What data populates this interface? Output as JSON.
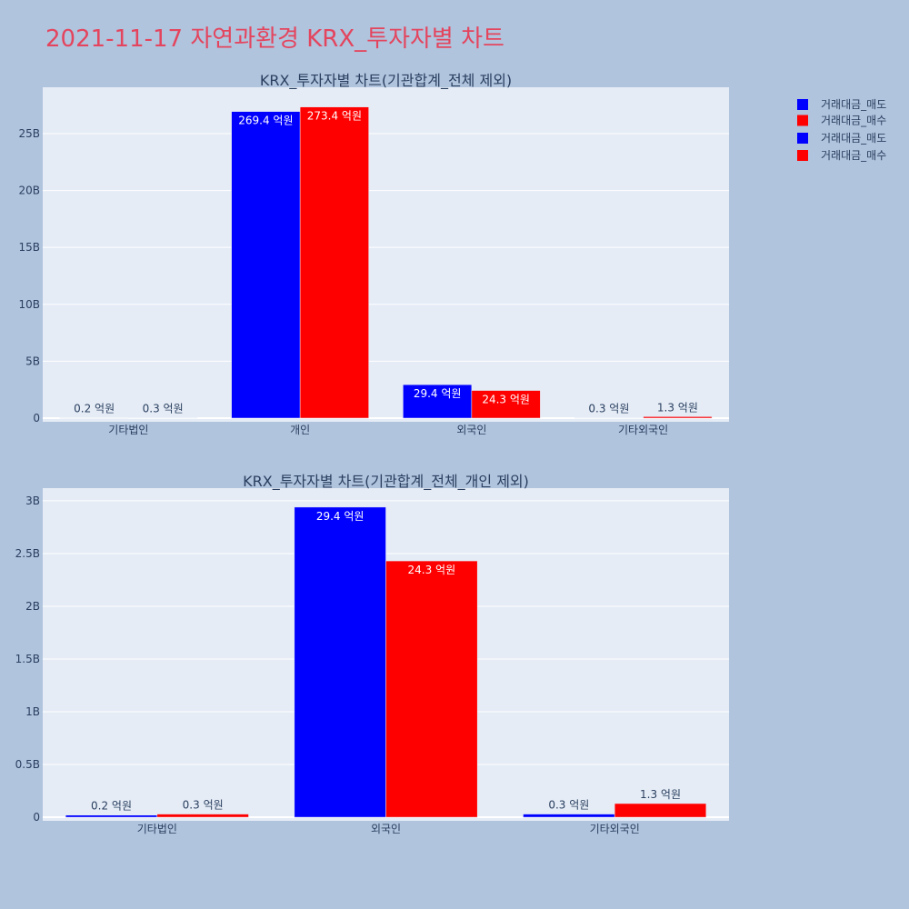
{
  "page": {
    "title": "2021-11-17 자연과환경 KRX_투자자별 차트",
    "title_color": "#e4455e",
    "background": "#b0c4de",
    "plot_background": "#e5ecf6"
  },
  "chart_data": [
    {
      "type": "bar",
      "title": "KRX_투자자별 차트(기관합계_전체 제외)",
      "xlabel": "",
      "ylabel": "",
      "categories": [
        "기타법인",
        "개인",
        "외국인",
        "기타외국인"
      ],
      "series": [
        {
          "name": "거래대금_매도",
          "color": "#0000ff",
          "values": [
            0.02,
            26.94,
            2.94,
            0.03
          ],
          "labels": [
            "0.2 억원",
            "269.4 억원",
            "29.4 억원",
            "0.3 억원"
          ]
        },
        {
          "name": "거래대금_매수",
          "color": "#ff0000",
          "values": [
            0.03,
            27.34,
            2.43,
            0.13
          ],
          "labels": [
            "0.3 억원",
            "273.4 억원",
            "24.3 억원",
            "1.3 억원"
          ]
        }
      ],
      "yticks": [
        {
          "value": 0,
          "label": "0"
        },
        {
          "value": 5,
          "label": "5B"
        },
        {
          "value": 10,
          "label": "10B"
        },
        {
          "value": 15,
          "label": "15B"
        },
        {
          "value": 20,
          "label": "20B"
        },
        {
          "value": 25,
          "label": "25B"
        }
      ],
      "ylim": [
        -0.32,
        29.07
      ],
      "grid": true,
      "legend_position": "right"
    },
    {
      "type": "bar",
      "title": "KRX_투자자별 차트(기관합계_전체_개인 제외)",
      "xlabel": "",
      "ylabel": "",
      "categories": [
        "기타법인",
        "외국인",
        "기타외국인"
      ],
      "series": [
        {
          "name": "거래대금_매도",
          "color": "#0000ff",
          "values": [
            0.02,
            2.94,
            0.03
          ],
          "labels": [
            "0.2 억원",
            "29.4 억원",
            "0.3 억원"
          ]
        },
        {
          "name": "거래대금_매수",
          "color": "#ff0000",
          "values": [
            0.03,
            2.43,
            0.13
          ],
          "labels": [
            "0.3 억원",
            "24.3 억원",
            "1.3 억원"
          ]
        }
      ],
      "yticks": [
        {
          "value": 0,
          "label": "0"
        },
        {
          "value": 0.5,
          "label": "0.5B"
        },
        {
          "value": 1,
          "label": "1B"
        },
        {
          "value": 1.5,
          "label": "1.5B"
        },
        {
          "value": 2,
          "label": "2B"
        },
        {
          "value": 2.5,
          "label": "2.5B"
        },
        {
          "value": 3,
          "label": "3B"
        }
      ],
      "ylim": [
        -0.034,
        3.12
      ],
      "grid": true,
      "legend_position": "right"
    }
  ]
}
